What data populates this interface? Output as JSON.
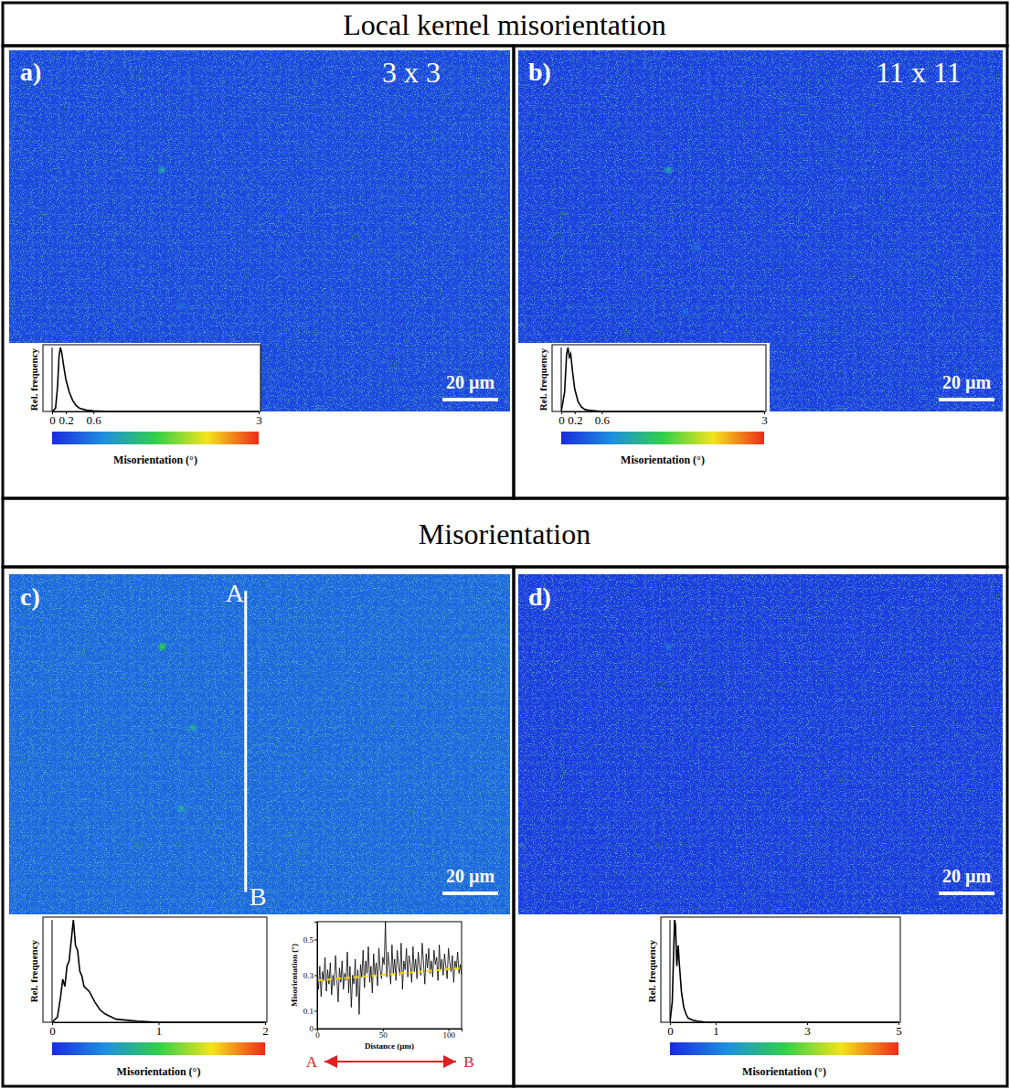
{
  "headings": [
    "Local kernel misorientation",
    "Misorientation"
  ],
  "chart_data": [
    {
      "type": "map",
      "panel": "a)",
      "title": "3 x 3",
      "xlim": [
        0,
        180
      ],
      "ylim": [
        0,
        130
      ],
      "background_value": 0.2,
      "spots": [
        {
          "x": 55,
          "y": 43,
          "value": 1.0
        },
        {
          "x": 62,
          "y": 92,
          "value": 0.5
        }
      ],
      "scale_bar": {
        "length": 20,
        "label": "20 µm"
      },
      "histogram": {
        "type": "line",
        "xlabel": "Misorientation (°)",
        "ylabel": "Rel. frequency",
        "color": "#000000",
        "tick_labels": "x",
        "x": [
          0,
          0.05,
          0.08,
          0.1,
          0.12,
          0.14,
          0.17,
          0.2,
          0.25,
          0.3,
          0.35,
          0.4,
          0.5,
          0.6,
          0.8,
          1,
          3
        ],
        "values": [
          0,
          0.05,
          0.4,
          0.85,
          1,
          0.92,
          0.7,
          0.5,
          0.3,
          0.17,
          0.09,
          0.05,
          0.02,
          0.01,
          0,
          0,
          0
        ],
        "xlim": [
          0,
          3
        ],
        "xticks": [
          0,
          0.2,
          0.6,
          3
        ],
        "ylim": [
          0,
          1
        ]
      }
    },
    {
      "type": "map",
      "panel": "b)",
      "title": "11 x 11",
      "xlim": [
        0,
        174
      ],
      "ylim": [
        0,
        130
      ],
      "background_value": 0.15,
      "spots": [
        {
          "x": 54,
          "y": 43,
          "value": 1.0
        },
        {
          "x": 64,
          "y": 71,
          "value": 0.5
        },
        {
          "x": 60,
          "y": 94,
          "value": 0.5
        }
      ],
      "scale_bar": {
        "length": 20,
        "label": "20 µm"
      },
      "histogram": {
        "type": "line",
        "xlabel": "Misorientation (°)",
        "ylabel": "Rel. frequency",
        "color": "#000000",
        "tick_labels": "x",
        "x": [
          0,
          0.05,
          0.08,
          0.1,
          0.12,
          0.14,
          0.17,
          0.2,
          0.25,
          0.3,
          0.35,
          0.4,
          0.5,
          0.6,
          0.8,
          1,
          3
        ],
        "values": [
          0,
          0.3,
          0.9,
          1,
          0.85,
          0.9,
          0.6,
          0.35,
          0.15,
          0.07,
          0.03,
          0.02,
          0.01,
          0,
          0,
          0,
          0
        ],
        "xlim": [
          0,
          3
        ],
        "xticks": [
          0,
          0.2,
          0.6,
          3
        ],
        "ylim": [
          0,
          1
        ]
      }
    },
    {
      "type": "map",
      "panel": "c)",
      "xlim": [
        0,
        180
      ],
      "ylim": [
        0,
        122
      ],
      "background_value": 0.3,
      "spots": [
        {
          "x": 55,
          "y": 26,
          "value": 1.0
        },
        {
          "x": 66,
          "y": 55,
          "value": 0.7
        },
        {
          "x": 62,
          "y": 84,
          "value": 0.7
        }
      ],
      "scale_bar": {
        "length": 20,
        "label": "20 µm"
      },
      "line": {
        "start_label": "A",
        "end_label": "B",
        "x": 85,
        "y": [
          6,
          114
        ]
      },
      "histogram": {
        "type": "line",
        "xlabel": "Misorientation (°)",
        "ylabel": "Rel. frequency",
        "color": "#000000",
        "tick_labels": "x",
        "x": [
          0,
          0.05,
          0.08,
          0.1,
          0.12,
          0.14,
          0.16,
          0.18,
          0.2,
          0.22,
          0.24,
          0.26,
          0.28,
          0.3,
          0.35,
          0.4,
          0.45,
          0.5,
          0.6,
          0.8,
          1,
          2
        ],
        "values": [
          0,
          0.05,
          0.25,
          0.42,
          0.35,
          0.55,
          0.6,
          0.8,
          1,
          0.75,
          0.7,
          0.5,
          0.45,
          0.35,
          0.3,
          0.2,
          0.12,
          0.08,
          0.03,
          0.01,
          0,
          0
        ],
        "xlim": [
          0,
          2
        ],
        "xticks": [
          0,
          1,
          2
        ],
        "ylim": [
          0,
          1
        ]
      },
      "profile": {
        "type": "line",
        "xlabel": "Distance (µm)",
        "ylabel": "Misorientation (°)",
        "color": "#000000",
        "x": [
          0,
          1,
          2,
          3,
          4,
          5,
          6,
          7,
          8,
          9,
          10,
          11,
          12,
          13,
          14,
          15,
          16,
          17,
          18,
          19,
          20,
          21,
          22,
          23,
          24,
          25,
          26,
          27,
          28,
          29,
          30,
          31,
          32,
          33,
          34,
          35,
          36,
          37,
          38,
          39,
          40,
          41,
          42,
          43,
          44,
          45,
          46,
          47,
          48,
          49,
          50,
          51,
          52,
          53,
          54,
          55,
          56,
          57,
          58,
          59,
          60,
          61,
          62,
          63,
          64,
          65,
          66,
          67,
          68,
          69,
          70,
          71,
          72,
          73,
          74,
          75,
          76,
          77,
          78,
          79,
          80,
          81,
          82,
          83,
          84,
          85,
          86,
          87,
          88,
          89,
          90,
          91,
          92,
          93,
          94,
          95,
          96,
          97,
          98,
          99,
          100,
          101,
          102,
          103,
          104,
          105,
          106,
          107,
          108,
          109,
          110
        ],
        "values": [
          0.3,
          0.22,
          0.35,
          0.18,
          0.32,
          0.27,
          0.4,
          0.21,
          0.33,
          0.25,
          0.37,
          0.19,
          0.3,
          0.24,
          0.41,
          0.28,
          0.15,
          0.34,
          0.26,
          0.38,
          0.22,
          0.31,
          0.27,
          0.43,
          0.2,
          0.35,
          0.12,
          0.3,
          0.25,
          0.39,
          0.18,
          0.33,
          0.08,
          0.36,
          0.29,
          0.44,
          0.23,
          0.38,
          0.31,
          0.46,
          0.26,
          0.35,
          0.2,
          0.42,
          0.3,
          0.37,
          0.24,
          0.45,
          0.33,
          0.28,
          0.4,
          0.36,
          0.6,
          0.29,
          0.43,
          0.34,
          0.25,
          0.47,
          0.31,
          0.39,
          0.27,
          0.44,
          0.35,
          0.3,
          0.48,
          0.22,
          0.38,
          0.33,
          0.45,
          0.29,
          0.41,
          0.36,
          0.26,
          0.46,
          0.32,
          0.39,
          0.28,
          0.43,
          0.35,
          0.3,
          0.48,
          0.37,
          0.25,
          0.42,
          0.34,
          0.45,
          0.31,
          0.38,
          0.29,
          0.44,
          0.36,
          0.4,
          0.27,
          0.47,
          0.33,
          0.39,
          0.3,
          0.42,
          0.35,
          0.28,
          0.45,
          0.37,
          0.32,
          0.41,
          0.26,
          0.38,
          0.34,
          0.43,
          0.31,
          0.36,
          0.3
        ],
        "xlim": [
          0,
          110
        ],
        "xticks": [
          0,
          50,
          100
        ],
        "ylim": [
          0,
          0.6
        ],
        "yticks": [
          0,
          0.1,
          0.3,
          0.5
        ],
        "trend": {
          "x": [
            0,
            110
          ],
          "values": [
            0.27,
            0.34
          ],
          "color": "#ffd400",
          "line_style": "dashed"
        }
      }
    },
    {
      "type": "map",
      "panel": "d)",
      "xlim": [
        0,
        174
      ],
      "ylim": [
        0,
        122
      ],
      "background_value": 0.2,
      "spots": [
        {
          "x": 54,
          "y": 26,
          "value": 0.9
        },
        {
          "x": 64,
          "y": 56,
          "value": 0.5
        },
        {
          "x": 60,
          "y": 84,
          "value": 0.4
        }
      ],
      "scale_bar": {
        "length": 20,
        "label": "20 µm"
      },
      "histogram": {
        "type": "line",
        "xlabel": "Misorientation (°)",
        "ylabel": "Rel. frequency",
        "color": "#000000",
        "tick_labels": "x",
        "x": [
          0,
          0.05,
          0.1,
          0.12,
          0.15,
          0.18,
          0.2,
          0.25,
          0.3,
          0.35,
          0.4,
          0.5,
          0.6,
          0.8,
          1,
          5
        ],
        "values": [
          0,
          0.2,
          1,
          0.95,
          0.55,
          0.75,
          0.6,
          0.3,
          0.15,
          0.08,
          0.04,
          0.02,
          0.01,
          0,
          0,
          0
        ],
        "xlim": [
          0,
          5
        ],
        "xticks": [
          0,
          1,
          3,
          5
        ],
        "ylim": [
          0,
          1
        ]
      }
    }
  ]
}
